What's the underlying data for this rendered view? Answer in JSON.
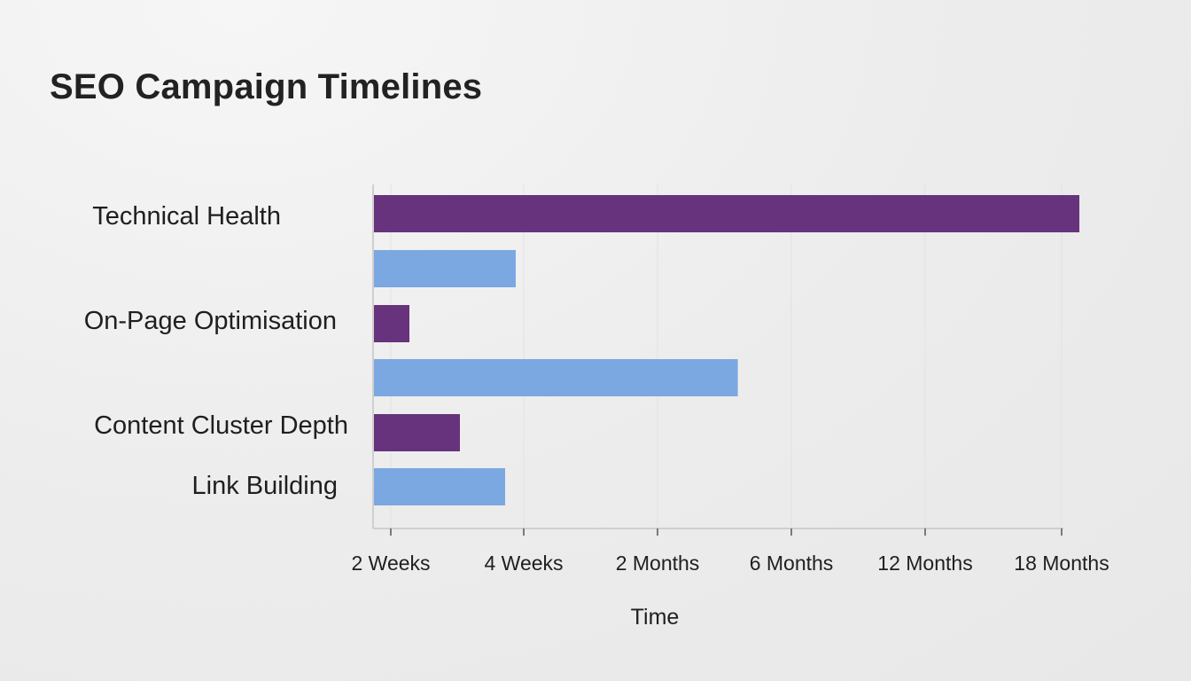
{
  "chart_data": {
    "type": "bar",
    "orientation": "horizontal",
    "title": "SEO Campaign Timelines",
    "xlabel": "Time",
    "ylabel": "",
    "x_ticks": [
      "2 Weeks",
      "4 Weeks",
      "2 Months",
      "6 Months",
      "12 Months",
      "18 Months"
    ],
    "category_labels": [
      "Technical Health",
      "On-Page Optimisation",
      "Content Cluster Depth",
      "Link Building"
    ],
    "bars": [
      {
        "value_tick": 5.13,
        "color": "#67337c"
      },
      {
        "value_tick": 0.94,
        "color": "#7ba8e1"
      },
      {
        "value_tick": 0.14,
        "color": "#67337c"
      },
      {
        "value_tick": 2.6,
        "color": "#7ba8e1"
      },
      {
        "value_tick": 0.52,
        "color": "#67337c"
      },
      {
        "value_tick": 0.86,
        "color": "#7ba8e1"
      }
    ],
    "colors": {
      "primary": "#67337c",
      "secondary": "#7ba8e1"
    },
    "grid": true,
    "legend": "none"
  }
}
